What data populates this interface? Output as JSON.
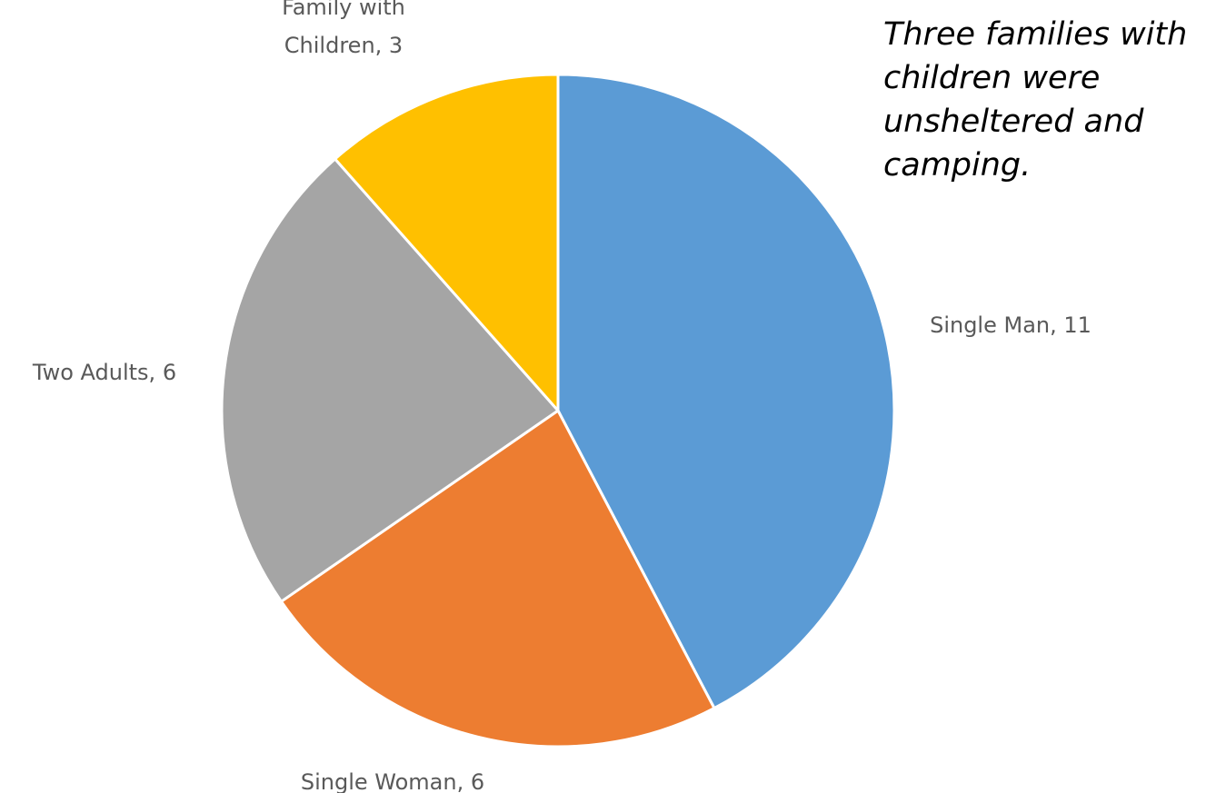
{
  "chart_data": {
    "type": "pie",
    "categories": [
      "Single Man",
      "Single Woman",
      "Two Adults",
      "Family with Children"
    ],
    "values": [
      11,
      6,
      6,
      3
    ],
    "colors": [
      "#5B9BD5",
      "#ED7D31",
      "#A5A5A5",
      "#FFC000"
    ],
    "labels": [
      {
        "lines": [
          "Single Man, 11"
        ]
      },
      {
        "lines": [
          "Single Woman, 6"
        ]
      },
      {
        "lines": [
          "Two Adults, 6"
        ]
      },
      {
        "lines": [
          "Family with",
          "Children, 3"
        ]
      }
    ],
    "start_angle": "12 o'clock",
    "direction": "clockwise",
    "annotation": "Three families with children were unsheltered and camping."
  }
}
